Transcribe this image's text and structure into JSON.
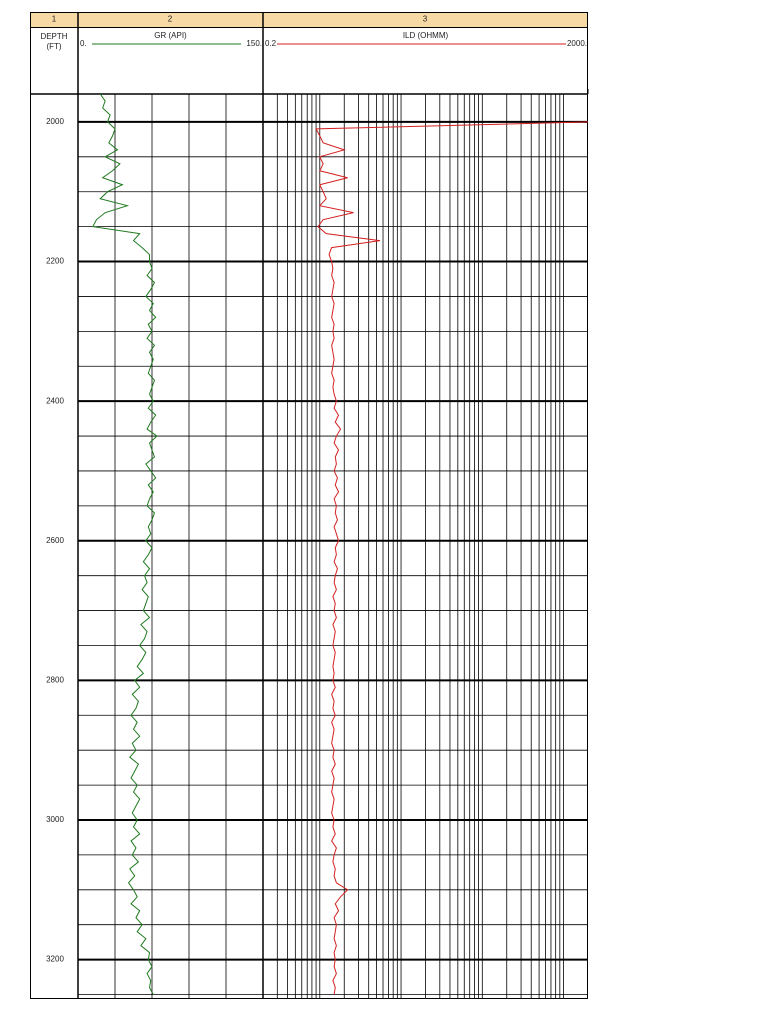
{
  "chart_data": {
    "type": "well-log",
    "track_labels": [
      "1",
      "2",
      "3"
    ],
    "depth_label": [
      "DEPTH",
      "(FT)"
    ],
    "ylim": [
      1960,
      3255
    ],
    "yticks": [
      2000,
      2200,
      2400,
      2600,
      2800,
      3000,
      3200
    ],
    "yminorticks": [
      2050,
      2100,
      2150,
      2250,
      2300,
      2350,
      2450,
      2500,
      2550,
      2650,
      2700,
      2750,
      2850,
      2900,
      2950,
      3050,
      3100,
      3150,
      3250
    ],
    "depth": [
      1960,
      1970,
      1980,
      1990,
      2000,
      2010,
      2020,
      2030,
      2040,
      2050,
      2060,
      2070,
      2080,
      2090,
      2100,
      2110,
      2120,
      2130,
      2140,
      2150,
      2160,
      2170,
      2180,
      2190,
      2200,
      2210,
      2220,
      2230,
      2240,
      2250,
      2260,
      2270,
      2280,
      2290,
      2300,
      2310,
      2320,
      2330,
      2340,
      2350,
      2360,
      2370,
      2380,
      2390,
      2400,
      2410,
      2420,
      2430,
      2440,
      2450,
      2460,
      2470,
      2480,
      2490,
      2500,
      2510,
      2520,
      2530,
      2540,
      2550,
      2560,
      2570,
      2580,
      2590,
      2600,
      2610,
      2620,
      2630,
      2640,
      2650,
      2660,
      2670,
      2680,
      2690,
      2700,
      2710,
      2720,
      2730,
      2740,
      2750,
      2760,
      2770,
      2780,
      2790,
      2800,
      2810,
      2820,
      2830,
      2840,
      2850,
      2860,
      2870,
      2880,
      2890,
      2900,
      2910,
      2920,
      2930,
      2940,
      2950,
      2960,
      2970,
      2980,
      2990,
      3000,
      3010,
      3020,
      3030,
      3040,
      3050,
      3060,
      3070,
      3080,
      3090,
      3100,
      3110,
      3120,
      3130,
      3140,
      3150,
      3160,
      3170,
      3180,
      3190,
      3200,
      3210,
      3220,
      3230,
      3240,
      3250
    ],
    "series": [
      {
        "name": "GR (API)",
        "color": "#1f7a1f",
        "scale": "linear",
        "xlim": [
          0,
          150
        ],
        "xticks": [
          {
            "value": 0,
            "label": "0."
          },
          {
            "value": 150,
            "label": "150."
          }
        ],
        "xgrid": [
          30,
          60,
          90,
          120
        ],
        "values": [
          18,
          22,
          20,
          26,
          24,
          30,
          28,
          25,
          32,
          22,
          34,
          28,
          20,
          36,
          24,
          18,
          40,
          22,
          15,
          12,
          50,
          45,
          52,
          58,
          58,
          60,
          56,
          62,
          59,
          55,
          61,
          58,
          63,
          57,
          60,
          56,
          62,
          58,
          61,
          59,
          57,
          62,
          60,
          58,
          61,
          57,
          63,
          59,
          56,
          64,
          58,
          60,
          62,
          55,
          59,
          63,
          57,
          61,
          58,
          56,
          62,
          60,
          57,
          59,
          55,
          60,
          57,
          53,
          58,
          54,
          56,
          52,
          57,
          55,
          53,
          58,
          51,
          56,
          54,
          50,
          55,
          52,
          48,
          53,
          46,
          50,
          44,
          49,
          47,
          43,
          48,
          45,
          50,
          44,
          47,
          42,
          49,
          46,
          43,
          48,
          45,
          50,
          47,
          44,
          48,
          45,
          50,
          43,
          47,
          44,
          49,
          42,
          46,
          41,
          45,
          48,
          43,
          50,
          47,
          52,
          48,
          55,
          51,
          58,
          57,
          60,
          56,
          59,
          58,
          61
        ]
      },
      {
        "name": "ILD (OHMM)",
        "color": "#d42020",
        "scale": "log",
        "xlim": [
          0.2,
          2000
        ],
        "xticks": [
          0.2,
          {
            "value": 2000,
            "label": "2000."
          }
        ],
        "xgrid": [
          0.3,
          0.4,
          0.5,
          0.6,
          0.7,
          0.8,
          0.9,
          1,
          2,
          3,
          4,
          5,
          6,
          7,
          8,
          9,
          10,
          20,
          30,
          40,
          50,
          60,
          70,
          80,
          90,
          100,
          200,
          300,
          400,
          500,
          600,
          700,
          800,
          900,
          1000
        ],
        "values": [
          null,
          null,
          null,
          null,
          2000,
          0.9,
          1.0,
          1.1,
          2.0,
          1.0,
          1.1,
          1.0,
          2.2,
          1.0,
          1.1,
          1.2,
          1.0,
          2.6,
          1.1,
          0.95,
          1.2,
          5.5,
          1.4,
          1.3,
          1.4,
          1.45,
          1.4,
          1.5,
          1.45,
          1.4,
          1.5,
          1.45,
          1.4,
          1.5,
          1.45,
          1.5,
          1.4,
          1.45,
          1.5,
          1.45,
          1.4,
          1.5,
          1.45,
          1.5,
          1.6,
          1.5,
          1.7,
          1.55,
          1.8,
          1.6,
          1.5,
          1.7,
          1.55,
          1.6,
          1.5,
          1.65,
          1.55,
          1.7,
          1.5,
          1.6,
          1.55,
          1.65,
          1.5,
          1.6,
          1.7,
          1.55,
          1.6,
          1.5,
          1.65,
          1.55,
          1.5,
          1.6,
          1.45,
          1.55,
          1.5,
          1.6,
          1.45,
          1.55,
          1.5,
          1.45,
          1.55,
          1.5,
          1.45,
          1.5,
          1.45,
          1.55,
          1.4,
          1.5,
          1.45,
          1.55,
          1.4,
          1.5,
          1.45,
          1.4,
          1.5,
          1.45,
          1.55,
          1.4,
          1.5,
          1.45,
          1.4,
          1.5,
          1.45,
          1.4,
          1.5,
          1.45,
          1.55,
          1.4,
          1.6,
          1.5,
          1.45,
          1.55,
          1.5,
          1.6,
          2.2,
          1.8,
          1.55,
          1.7,
          1.5,
          1.6,
          1.55,
          1.5,
          1.6,
          1.5,
          1.55,
          1.5,
          1.6,
          1.45,
          1.55,
          1.5
        ]
      }
    ]
  }
}
